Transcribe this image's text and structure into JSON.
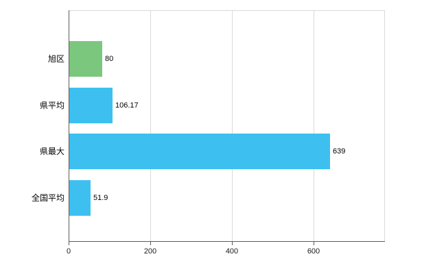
{
  "chart_data": {
    "type": "bar",
    "orientation": "horizontal",
    "title": "",
    "xlabel": "",
    "ylabel": "",
    "categories": [
      "旭区",
      "県平均",
      "県最大",
      "全国平均"
    ],
    "values": [
      80,
      106.17,
      639,
      51.9
    ],
    "value_labels": [
      "80",
      "106.17",
      "639",
      "51.9"
    ],
    "bar_colors": [
      "#7cc77e",
      "#3dc0f0",
      "#3dc0f0",
      "#3dc0f0"
    ],
    "x_ticks": [
      0,
      200,
      400,
      600
    ],
    "x_tick_labels": [
      "0",
      "200",
      "400",
      "600"
    ],
    "xlim": [
      0,
      773
    ],
    "grid": true,
    "legend": "none",
    "colors": {
      "grid": "#d9d9d9",
      "axis": "#5a5a5a",
      "background": "#ffffff",
      "green_bar": "#7cc77e",
      "blue_bar": "#3dc0f0"
    }
  }
}
